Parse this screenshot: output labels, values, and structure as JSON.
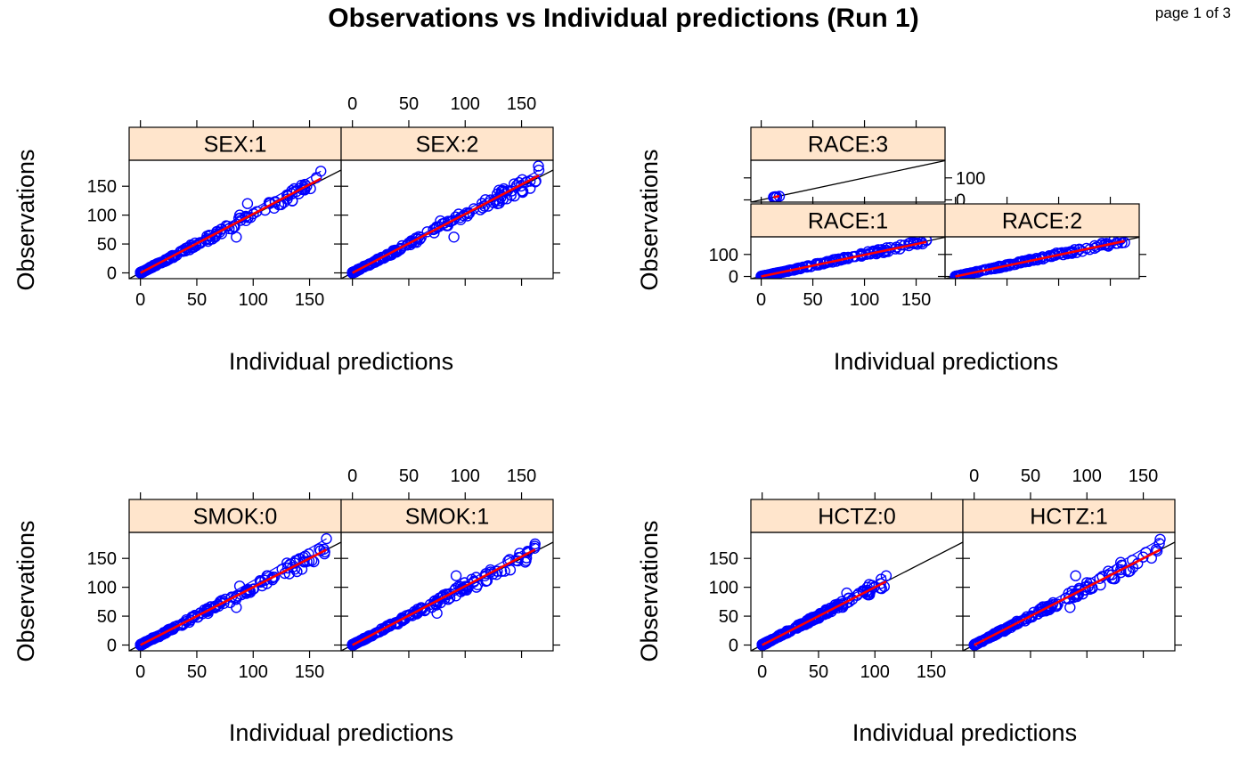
{
  "title": "Observations vs Individual predictions (Run 1)",
  "page_label": "page 1 of 3",
  "colors": {
    "strip": "#ffe5cc",
    "points": "#0000ff",
    "smooth": "#ff0000",
    "identity": "#000000"
  },
  "chart_data": [
    {
      "type": "scatter",
      "xlabel": "Individual predictions",
      "ylabel": "Observations",
      "xlim": [
        -10,
        178
      ],
      "ylim": [
        -10,
        195
      ],
      "xticks": [
        "0",
        "50",
        "100",
        "150"
      ],
      "yticks": [
        "0",
        "50",
        "100",
        "150"
      ],
      "reference_line": "y = x",
      "panels": [
        {
          "label": "SEX:1",
          "xmax": 160,
          "spread": 0.08,
          "smooth_slope": 1.02,
          "outliers": [
            [
              85,
              62
            ],
            [
              88,
              100
            ],
            [
              95,
              120
            ],
            [
              130,
              135
            ],
            [
              160,
              176
            ]
          ]
        },
        {
          "label": "SEX:2",
          "xmax": 168,
          "spread": 0.08,
          "smooth_slope": 1.02,
          "outliers": [
            [
              90,
              62
            ],
            [
              78,
              90
            ],
            [
              130,
              143
            ],
            [
              165,
              185
            ]
          ]
        }
      ]
    },
    {
      "type": "scatter",
      "xlabel": "Individual predictions",
      "ylabel": "Observations",
      "xlim": [
        -10,
        178
      ],
      "ylim": [
        -10,
        180
      ],
      "xticks": [
        "0",
        "50",
        "100",
        "150"
      ],
      "yticks": [
        "0",
        "100"
      ],
      "reference_line": "y = x",
      "panels": [
        {
          "label": "RACE:3",
          "xmin": 12,
          "xmax": 18,
          "spread": 0.05,
          "smooth_slope": 1.0,
          "outliers": []
        },
        {
          "label": "RACE:1",
          "xmax": 162,
          "spread": 0.08,
          "smooth_slope": 0.98,
          "outliers": [
            [
              130,
              125
            ],
            [
              160,
              165
            ]
          ]
        },
        {
          "label": "RACE:2",
          "xmax": 165,
          "spread": 0.08,
          "smooth_slope": 0.98,
          "outliers": [
            [
              135,
              140
            ],
            [
              160,
              168
            ]
          ]
        }
      ]
    },
    {
      "type": "scatter",
      "xlabel": "Individual predictions",
      "ylabel": "Observations",
      "xlim": [
        -10,
        178
      ],
      "ylim": [
        -10,
        195
      ],
      "xticks": [
        "0",
        "50",
        "100",
        "150"
      ],
      "yticks": [
        "0",
        "50",
        "100",
        "150"
      ],
      "reference_line": "y = x",
      "panels": [
        {
          "label": "SMOK:0",
          "xmax": 165,
          "spread": 0.08,
          "smooth_slope": 1.0,
          "outliers": [
            [
              85,
              65
            ],
            [
              88,
              102
            ],
            [
              130,
              142
            ],
            [
              165,
              184
            ]
          ]
        },
        {
          "label": "SMOK:1",
          "xmax": 162,
          "spread": 0.08,
          "smooth_slope": 1.02,
          "outliers": [
            [
              75,
              55
            ],
            [
              92,
              120
            ],
            [
              110,
              100
            ],
            [
              155,
              160
            ],
            [
              162,
              175
            ]
          ]
        }
      ]
    },
    {
      "type": "scatter",
      "xlabel": "Individual predictions",
      "ylabel": "Observations",
      "xlim": [
        -10,
        178
      ],
      "ylim": [
        -10,
        195
      ],
      "xticks": [
        "0",
        "50",
        "100",
        "150"
      ],
      "yticks": [
        "0",
        "50",
        "100",
        "150"
      ],
      "reference_line": "y = x",
      "panels": [
        {
          "label": "HCTZ:0",
          "xmax": 110,
          "spread": 0.08,
          "smooth_slope": 1.0,
          "outliers": [
            [
              75,
              90
            ],
            [
              95,
              105
            ],
            [
              110,
              120
            ]
          ]
        },
        {
          "label": "HCTZ:1",
          "xmax": 165,
          "spread": 0.08,
          "smooth_slope": 1.0,
          "outliers": [
            [
              85,
              65
            ],
            [
              90,
              120
            ],
            [
              130,
              143
            ],
            [
              165,
              183
            ]
          ]
        }
      ]
    }
  ]
}
